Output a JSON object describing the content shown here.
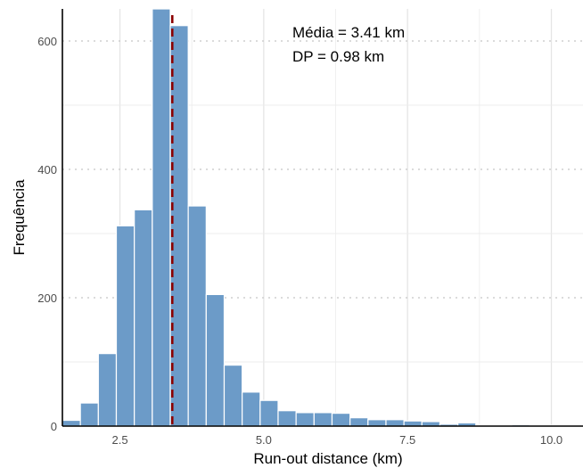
{
  "chart_data": {
    "type": "bar",
    "subtype": "histogram",
    "xlabel": "Run-out distance (km)",
    "ylabel": "Frequência",
    "xlim": [
      1.5,
      10.55
    ],
    "ylim": [
      0,
      650
    ],
    "x_ticks": [
      2.5,
      5.0,
      7.5,
      10.0
    ],
    "x_tick_labels": [
      "2.5",
      "5.0",
      "7.5",
      "10.0"
    ],
    "y_ticks": [
      0,
      200,
      400,
      600
    ],
    "y_tick_labels": [
      "0",
      "200",
      "400",
      "600"
    ],
    "bin_width": 0.3125,
    "bin_start": 1.5,
    "values": [
      9,
      36,
      113,
      312,
      337,
      652,
      624,
      343,
      205,
      95,
      53,
      40,
      24,
      21,
      21,
      20,
      13,
      10,
      10,
      8,
      7,
      3,
      5,
      1,
      1,
      2,
      1,
      1,
      1
    ],
    "mean_line": {
      "x": 3.41,
      "color": "#8b0000",
      "style": "dashed"
    },
    "annotations": [
      "Média = 3.41 km",
      "DP = 0.98 km"
    ],
    "grid": true,
    "colors": {
      "bar": "#6c9bc8",
      "bar_edge": "#ffffff",
      "grid": "#e5e5e5",
      "mean": "#8b0000"
    }
  }
}
